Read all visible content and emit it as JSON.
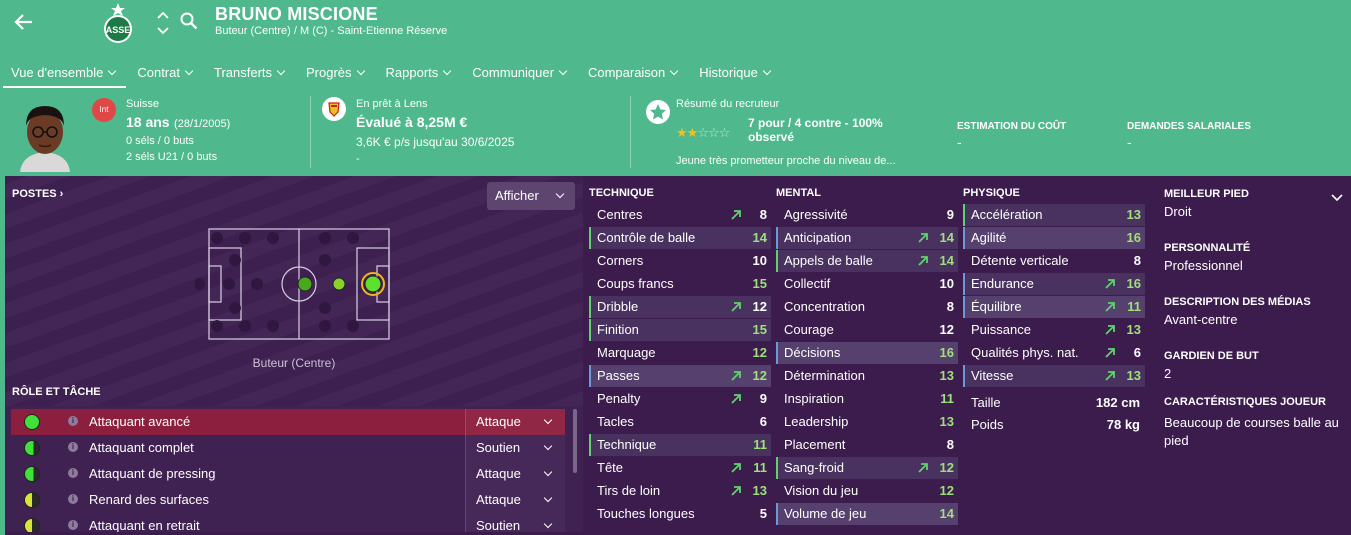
{
  "header": {
    "player_name": "BRUNO MISCIONE",
    "subtitle": "Buteur (Centre) / M (C) - Saint-Etienne Réserve",
    "icons": [
      "back-arrow-icon",
      "club-crest-icon",
      "up-down-arrows-icon",
      "search-icon"
    ]
  },
  "menu": [
    {
      "label": "Vue d'ensemble"
    },
    {
      "label": "Contrat"
    },
    {
      "label": "Transferts"
    },
    {
      "label": "Progrès"
    },
    {
      "label": "Rapports"
    },
    {
      "label": "Communiquer"
    },
    {
      "label": "Comparaison"
    },
    {
      "label": "Historique"
    }
  ],
  "bio": {
    "nation_badge": "Int",
    "nation": "Suisse",
    "age": "18 ans",
    "dob": "(28/1/2005)",
    "caps": "0 séls / 0 buts",
    "u21": "2 séls U21 / 0 buts"
  },
  "loan": {
    "label": "En prêt à Lens",
    "value": "Évalué à 8,25M €",
    "wage": "3,6K € p/s jusqu'au 30/6/2025",
    "dash": "-"
  },
  "scout": {
    "label": "Résumé du recruteur",
    "summary_line1": "7 pour / 4 contre - 100%",
    "summary_line2": "observé",
    "desc": "Jeune très prometteur proche du niveau de...",
    "stars_on": 2,
    "stars_total": 5,
    "cost_label": "ESTIMATION DU COÛT",
    "cost_value": "-",
    "wage_label": "DEMANDES SALARIALES",
    "wage_value": "-"
  },
  "positions": {
    "title": "POSTES",
    "show_button": "Afficher",
    "position_label": "Buteur (Centre)"
  },
  "roles": {
    "title": "RÔLE ET TÂCHE",
    "items": [
      {
        "name": "Attaquant avancé",
        "duty": "Attaque"
      },
      {
        "name": "Attaquant complet",
        "duty": "Soutien"
      },
      {
        "name": "Attaquant de pressing",
        "duty": "Attaque"
      },
      {
        "name": "Renard des surfaces",
        "duty": "Attaque"
      },
      {
        "name": "Attaquant en retrait",
        "duty": "Soutien"
      }
    ]
  },
  "technique": {
    "title": "TECHNIQUE",
    "items": [
      {
        "name": "Centres",
        "value": "8"
      },
      {
        "name": "Contrôle de balle",
        "value": "14"
      },
      {
        "name": "Corners",
        "value": "10"
      },
      {
        "name": "Coups francs",
        "value": "15"
      },
      {
        "name": "Dribble",
        "value": "12"
      },
      {
        "name": "Finition",
        "value": "15"
      },
      {
        "name": "Marquage",
        "value": "12"
      },
      {
        "name": "Passes",
        "value": "12"
      },
      {
        "name": "Penalty",
        "value": "9"
      },
      {
        "name": "Tacles",
        "value": "6"
      },
      {
        "name": "Technique",
        "value": "11"
      },
      {
        "name": "Tête",
        "value": "11"
      },
      {
        "name": "Tirs de loin",
        "value": "13"
      },
      {
        "name": "Touches longues",
        "value": "5"
      }
    ]
  },
  "mental": {
    "title": "MENTAL",
    "items": [
      {
        "name": "Agressivité",
        "value": "9"
      },
      {
        "name": "Anticipation",
        "value": "14"
      },
      {
        "name": "Appels de balle",
        "value": "14"
      },
      {
        "name": "Collectif",
        "value": "10"
      },
      {
        "name": "Concentration",
        "value": "8"
      },
      {
        "name": "Courage",
        "value": "12"
      },
      {
        "name": "Décisions",
        "value": "16"
      },
      {
        "name": "Détermination",
        "value": "13"
      },
      {
        "name": "Inspiration",
        "value": "11"
      },
      {
        "name": "Leadership",
        "value": "13"
      },
      {
        "name": "Placement",
        "value": "8"
      },
      {
        "name": "Sang-froid",
        "value": "12"
      },
      {
        "name": "Vision du jeu",
        "value": "12"
      },
      {
        "name": "Volume de jeu",
        "value": "14"
      }
    ]
  },
  "physique": {
    "title": "PHYSIQUE",
    "items": [
      {
        "name": "Accélération",
        "value": "13"
      },
      {
        "name": "Agilité",
        "value": "16"
      },
      {
        "name": "Détente verticale",
        "value": "8"
      },
      {
        "name": "Endurance",
        "value": "16"
      },
      {
        "name": "Équilibre",
        "value": "11"
      },
      {
        "name": "Puissance",
        "value": "13"
      },
      {
        "name": "Qualités phys. nat.",
        "value": "6"
      },
      {
        "name": "Vitesse",
        "value": "13"
      }
    ],
    "height_label": "Taille",
    "height_value": "182 cm",
    "weight_label": "Poids",
    "weight_value": "78 kg"
  },
  "details": {
    "foot_label": "MEILLEUR PIED",
    "foot_value": "Droit",
    "personality_label": "PERSONNALITÉ",
    "personality_value": "Professionnel",
    "media_label": "DESCRIPTION DES MÉDIAS",
    "media_value": "Avant-centre",
    "gk_label": "GARDIEN DE BUT",
    "gk_value": "2",
    "traits_label": "CARACTÉRISTIQUES JOUEUR",
    "traits_line1": "Beaucoup de courses balle au",
    "traits_line2": "pied"
  },
  "colors": {
    "header_bg": "#4fb88c",
    "panel_bg": "#3c1c4d",
    "accent_green": "#5ed36c",
    "accent_blue": "#6a9bd8",
    "selected_role": "#8c1f3d"
  }
}
